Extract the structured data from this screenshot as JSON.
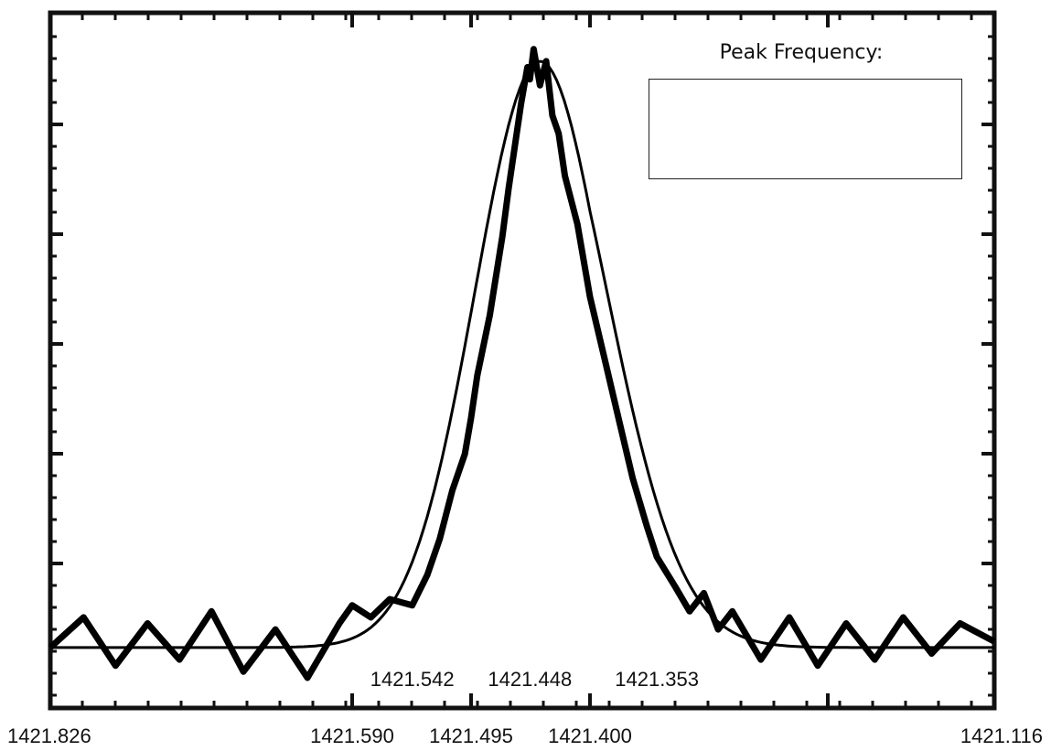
{
  "chart_data": {
    "type": "line",
    "title": "",
    "xlabel": "",
    "ylabel": "",
    "x_direction": "descending",
    "xlim": [
      1421.826,
      1421.116
    ],
    "ylim": [
      -0.1,
      1.05
    ],
    "grid": false,
    "bottom_tick_labels": [
      "1421.826",
      "1421.590",
      "1421.495",
      "1421.400",
      "1421.116"
    ],
    "bottom_tick_values": [
      1421.826,
      1421.59,
      1421.495,
      1421.4,
      1421.116
    ],
    "inner_tick_labels": [
      "1421.542",
      "1421.448",
      "1421.353"
    ],
    "inner_tick_values": [
      1421.542,
      1421.448,
      1421.353
    ],
    "series": [
      {
        "style": "noisy",
        "x": [
          1421.826,
          1421.8,
          1421.775,
          1421.75,
          1421.725,
          1421.7,
          1421.675,
          1421.65,
          1421.625,
          1421.6,
          1421.59,
          1421.575,
          1421.56,
          1421.542,
          1421.53,
          1421.52,
          1421.51,
          1421.5,
          1421.495,
          1421.49,
          1421.48,
          1421.47,
          1421.465,
          1421.46,
          1421.455,
          1421.45,
          1421.448,
          1421.445,
          1421.44,
          1421.435,
          1421.43,
          1421.425,
          1421.42,
          1421.41,
          1421.4,
          1421.39,
          1421.38,
          1421.37,
          1421.36,
          1421.353,
          1421.34,
          1421.33,
          1421.32,
          1421.31,
          1421.3,
          1421.28,
          1421.26,
          1421.24,
          1421.22,
          1421.2,
          1421.18,
          1421.16,
          1421.14,
          1421.116
        ],
        "y": [
          0.0,
          0.05,
          -0.03,
          0.04,
          -0.02,
          0.06,
          -0.04,
          0.03,
          -0.05,
          0.04,
          0.07,
          0.05,
          0.08,
          0.07,
          0.12,
          0.18,
          0.26,
          0.32,
          0.38,
          0.45,
          0.55,
          0.68,
          0.76,
          0.83,
          0.9,
          0.96,
          0.94,
          0.99,
          0.93,
          0.97,
          0.88,
          0.85,
          0.78,
          0.7,
          0.58,
          0.48,
          0.38,
          0.28,
          0.2,
          0.15,
          0.1,
          0.06,
          0.09,
          0.03,
          0.06,
          -0.02,
          0.05,
          -0.03,
          0.04,
          -0.02,
          0.05,
          -0.01,
          0.04,
          0.01
        ]
      },
      {
        "style": "smooth-fit",
        "peak_x": 1421.44,
        "peak_y": 0.97,
        "sigma": 0.052,
        "baseline": 0.0
      }
    ]
  },
  "peak_box": {
    "title": "Peak Frequency:",
    "value": ""
  }
}
